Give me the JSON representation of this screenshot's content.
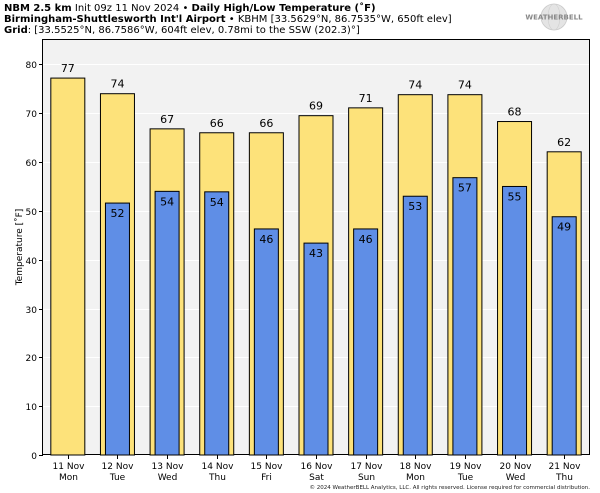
{
  "header": {
    "model": "NBM 2.5 km",
    "init": "Init 09z 11 Nov 2024",
    "bullet": "•",
    "product": "Daily High/Low Temperature (˚F)",
    "station_name": "Birmingham-Shuttlesworth Int'l Airport",
    "station_id": "KBHM [33.5629°N, 86.7535°W, 650ft elev]",
    "grid_label": "Grid",
    "grid_info": ": [33.5525°N, 86.7586°W, 604ft elev, 0.78mi to the SSW (202.3)°]"
  },
  "logo": {
    "text": "WEATHERBELL"
  },
  "footer": "© 2024 WeatherBELL Analytics, LLC. All rights reserved. License required for commercial distribution.",
  "colors": {
    "high": "#fde27a",
    "low": "#5f8ee6",
    "plot_bg": "#f2f2f2",
    "grid": "#ffffff",
    "outline": "#000000"
  },
  "chart_data": {
    "type": "bar",
    "ylabel": "Temperature [˚F]",
    "ylim": [
      0,
      85
    ],
    "yticks": [
      0,
      10,
      20,
      30,
      40,
      50,
      60,
      70,
      80
    ],
    "grid": true,
    "categories": [
      [
        "11 Nov",
        "Mon"
      ],
      [
        "12 Nov",
        "Tue"
      ],
      [
        "13 Nov",
        "Wed"
      ],
      [
        "14 Nov",
        "Thu"
      ],
      [
        "15 Nov",
        "Fri"
      ],
      [
        "16 Nov",
        "Sat"
      ],
      [
        "17 Nov",
        "Sun"
      ],
      [
        "18 Nov",
        "Mon"
      ],
      [
        "19 Nov",
        "Tue"
      ],
      [
        "20 Nov",
        "Wed"
      ],
      [
        "21 Nov",
        "Thu"
      ]
    ],
    "series": [
      {
        "key": "high",
        "values": [
          77,
          74,
          67,
          66,
          66,
          69,
          71,
          74,
          74,
          68,
          62
        ],
        "exact": [
          77.2,
          74.0,
          66.8,
          66.0,
          66.0,
          69.5,
          71.1,
          73.8,
          73.8,
          68.3,
          62.1
        ]
      },
      {
        "key": "low",
        "values": [
          null,
          52,
          54,
          54,
          46,
          43,
          46,
          53,
          57,
          55,
          49
        ],
        "exact": [
          null,
          51.6,
          54.0,
          53.9,
          46.3,
          43.4,
          46.3,
          53.0,
          56.8,
          55.0,
          48.8
        ]
      }
    ]
  }
}
